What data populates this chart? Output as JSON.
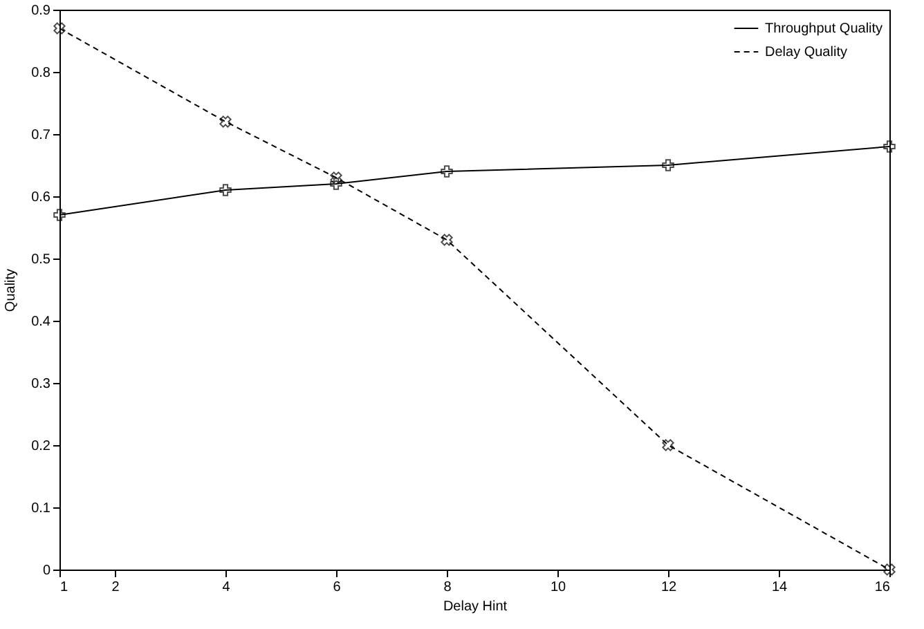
{
  "chart_data": {
    "type": "line",
    "xlabel": "Delay Hint",
    "ylabel": "Quality",
    "x": [
      1,
      4,
      6,
      8,
      12,
      16
    ],
    "series": [
      {
        "name": "Throughput Quality",
        "color": "#000000",
        "values": [
          0.57,
          0.61,
          0.62,
          0.64,
          0.65,
          0.68
        ],
        "line_style": "solid",
        "marker": "cross"
      },
      {
        "name": "Delay Quality",
        "color": "#000000",
        "values": [
          0.87,
          0.72,
          0.63,
          0.53,
          0.2,
          0.0
        ],
        "line_style": "dashed",
        "marker": "cross"
      }
    ],
    "xlim": [
      1,
      16
    ],
    "xticks": [
      1,
      2,
      4,
      6,
      8,
      10,
      12,
      14,
      16
    ],
    "ylim": [
      0,
      0.9
    ],
    "yticks": [
      0,
      0.1,
      0.2,
      0.3,
      0.4,
      0.5,
      0.6,
      0.7,
      0.8,
      0.9
    ],
    "grid": false,
    "legend": "top right"
  }
}
